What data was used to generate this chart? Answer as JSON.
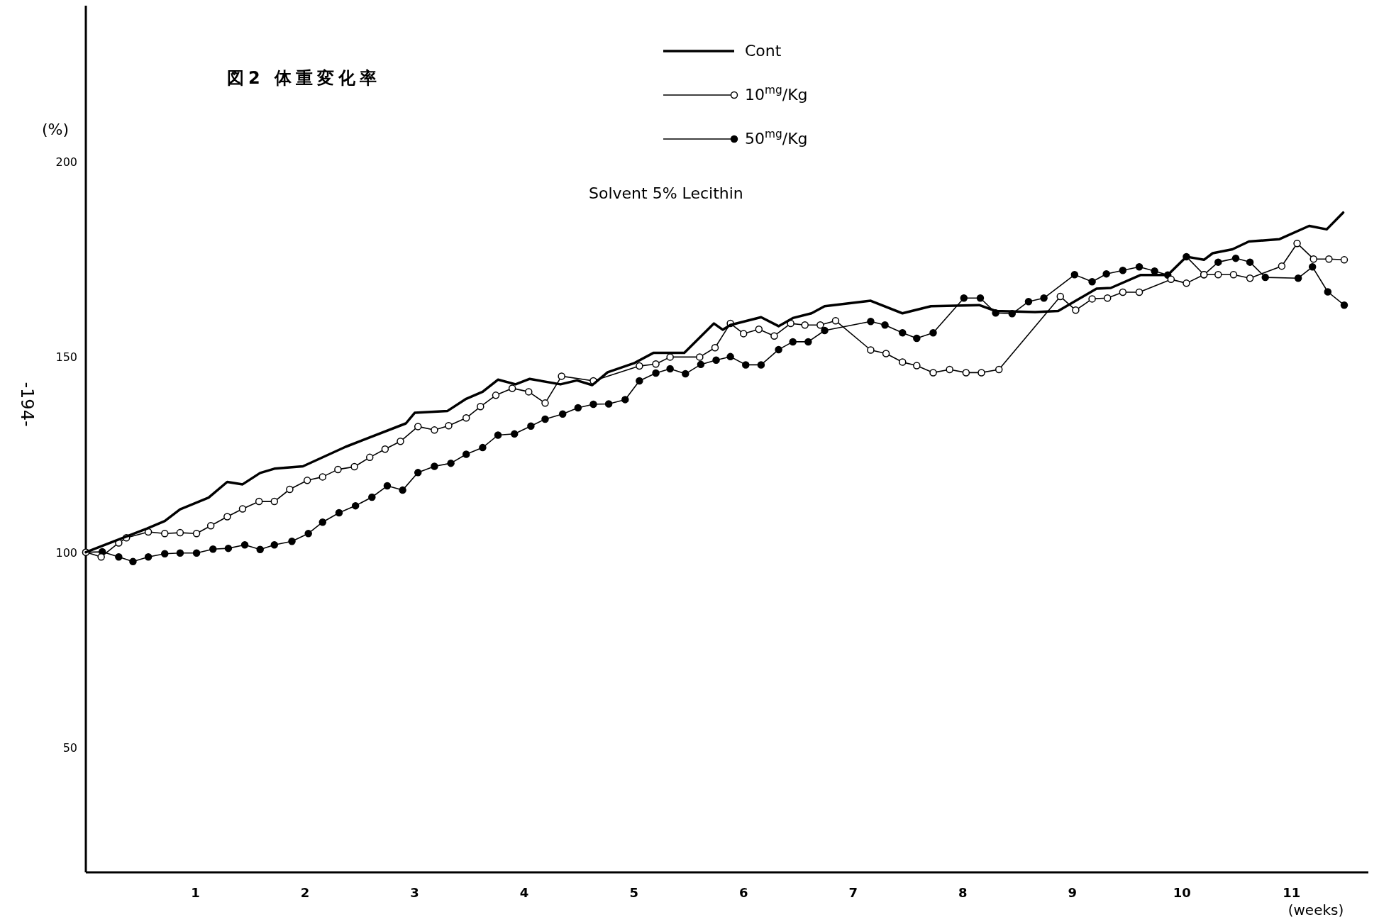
{
  "chart_data": {
    "type": "line",
    "title": "図2 体重変化率",
    "ylabel": "(%)",
    "xlabel": "(weeks)",
    "annotations": [
      "Solvent 5% Lecithin",
      "-194-"
    ],
    "xlim": [
      0,
      11.7
    ],
    "ylim": [
      18,
      240
    ],
    "xticks": [
      1,
      2,
      3,
      4,
      5,
      6,
      7,
      8,
      9,
      10,
      11
    ],
    "yticks": [
      50,
      100,
      150,
      200
    ],
    "grid": false,
    "legend": "top",
    "series": [
      {
        "name": "Cont",
        "color": "#000000",
        "marker": "none",
        "x": [
          0,
          0.56,
          0.72,
          0.86,
          1.12,
          1.29,
          1.43,
          1.59,
          1.72,
          1.98,
          2.37,
          2.92,
          3.0,
          3.3,
          3.47,
          3.62,
          3.76,
          3.92,
          4.05,
          4.33,
          4.48,
          4.62,
          4.76,
          5.0,
          5.18,
          5.46,
          5.73,
          5.81,
          5.88,
          6.16,
          6.32,
          6.45,
          6.62,
          6.74,
          7.16,
          7.45,
          7.71,
          8.15,
          8.3,
          8.66,
          8.87,
          9.22,
          9.35,
          9.62,
          9.87,
          10.04,
          10.2,
          10.28,
          10.46,
          10.61,
          10.89,
          11.16,
          11.32,
          11.47
        ],
        "values": [
          100,
          106.1,
          108,
          111,
          114,
          118,
          117.4,
          120.3,
          121.4,
          122,
          127,
          133,
          135.7,
          136.2,
          139.3,
          141.1,
          144.2,
          143,
          144.4,
          143,
          144,
          142.8,
          146.1,
          148.4,
          151.1,
          151.1,
          158.6,
          157,
          158.2,
          160.2,
          157.9,
          160,
          161.2,
          163,
          164.4,
          161.2,
          163,
          163.3,
          161.8,
          161.5,
          161.8,
          167.5,
          167.7,
          171,
          171,
          175.7,
          174.9,
          176.6,
          177.6,
          179.6,
          180.2,
          183.6,
          182.7,
          187
        ]
      },
      {
        "name": "10$^{mg}$/Kg",
        "color": "#000000",
        "marker": "circle",
        "x": [
          0,
          0.14,
          0.3,
          0.37,
          0.57,
          0.72,
          0.86,
          1.01,
          1.14,
          1.29,
          1.43,
          1.58,
          1.72,
          1.86,
          2.02,
          2.16,
          2.3,
          2.45,
          2.59,
          2.73,
          2.87,
          3.03,
          3.18,
          3.31,
          3.47,
          3.6,
          3.74,
          3.89,
          4.04,
          4.19,
          4.34,
          4.63,
          5.05,
          5.2,
          5.33,
          5.6,
          5.74,
          5.88,
          6.0,
          6.14,
          6.28,
          6.43,
          6.56,
          6.7,
          6.84,
          7.16,
          7.3,
          7.45,
          7.58,
          7.73,
          7.88,
          8.03,
          8.17,
          8.33,
          8.89,
          9.03,
          9.18,
          9.32,
          9.46,
          9.61,
          9.9,
          10.04,
          10.2,
          10.33,
          10.47,
          10.62,
          10.91,
          11.05,
          11.2,
          11.34,
          11.48
        ],
        "values": [
          100,
          98.8,
          102.4,
          103.7,
          105.2,
          104.8,
          105,
          104.8,
          106.8,
          109.1,
          111.1,
          113,
          113,
          116.1,
          118.4,
          119.3,
          121.2,
          121.9,
          124.3,
          126.4,
          128.4,
          132.2,
          131.3,
          132.4,
          134.4,
          137.3,
          140.2,
          142,
          141.1,
          138.2,
          145.1,
          143.9,
          147.7,
          148.2,
          150,
          150,
          152.4,
          158.6,
          156,
          157.1,
          155.4,
          158.6,
          158.2,
          158.2,
          159.3,
          151.8,
          150.9,
          148.7,
          147.8,
          146,
          146.8,
          146,
          146,
          146.8,
          165.5,
          162,
          164.9,
          165.1,
          166.6,
          166.6,
          169.9,
          168.9,
          171.1,
          171.1,
          171.1,
          170.2,
          173.3,
          179.1,
          175.1,
          175.1,
          174.9
        ]
      },
      {
        "name": "50$^{mg}$/Kg",
        "color": "#000000",
        "marker": "circle",
        "x": [
          0,
          0.15,
          0.3,
          0.43,
          0.57,
          0.72,
          0.86,
          1.01,
          1.16,
          1.3,
          1.45,
          1.59,
          1.72,
          1.88,
          2.03,
          2.16,
          2.31,
          2.46,
          2.61,
          2.75,
          2.89,
          3.03,
          3.18,
          3.33,
          3.47,
          3.62,
          3.76,
          3.91,
          4.06,
          4.19,
          4.35,
          4.49,
          4.63,
          4.77,
          4.92,
          5.05,
          5.2,
          5.33,
          5.47,
          5.61,
          5.75,
          5.88,
          6.02,
          6.16,
          6.32,
          6.45,
          6.59,
          6.74,
          7.16,
          7.29,
          7.45,
          7.58,
          7.73,
          8.01,
          8.16,
          8.3,
          8.45,
          8.6,
          8.74,
          9.02,
          9.18,
          9.31,
          9.46,
          9.61,
          9.75,
          9.87,
          10.04,
          10.2,
          10.33,
          10.49,
          10.62,
          10.76,
          11.06,
          11.19,
          11.33,
          11.48
        ],
        "values": [
          100,
          100.1,
          98.8,
          97.6,
          98.8,
          99.6,
          99.8,
          99.8,
          100.8,
          101,
          101.9,
          100.7,
          101.9,
          102.8,
          104.8,
          107.7,
          110.1,
          111.9,
          114.1,
          117,
          115.9,
          120.4,
          122,
          122.8,
          125.1,
          126.8,
          130,
          130.3,
          132.3,
          134.1,
          135.4,
          137,
          137.9,
          138,
          139.1,
          143.9,
          145.9,
          147,
          145.7,
          148.1,
          149.2,
          150.1,
          148,
          148,
          151.9,
          153.9,
          153.9,
          156.8,
          159.1,
          158.2,
          156.2,
          154.8,
          156.2,
          165.1,
          165.1,
          161.3,
          161.1,
          164.2,
          165.1,
          171.1,
          169.3,
          171.3,
          172.2,
          173.1,
          172,
          171,
          175.7,
          171.1,
          174.3,
          175.3,
          174.3,
          170.4,
          170.2,
          173.1,
          166.7,
          163.3
        ]
      }
    ]
  }
}
